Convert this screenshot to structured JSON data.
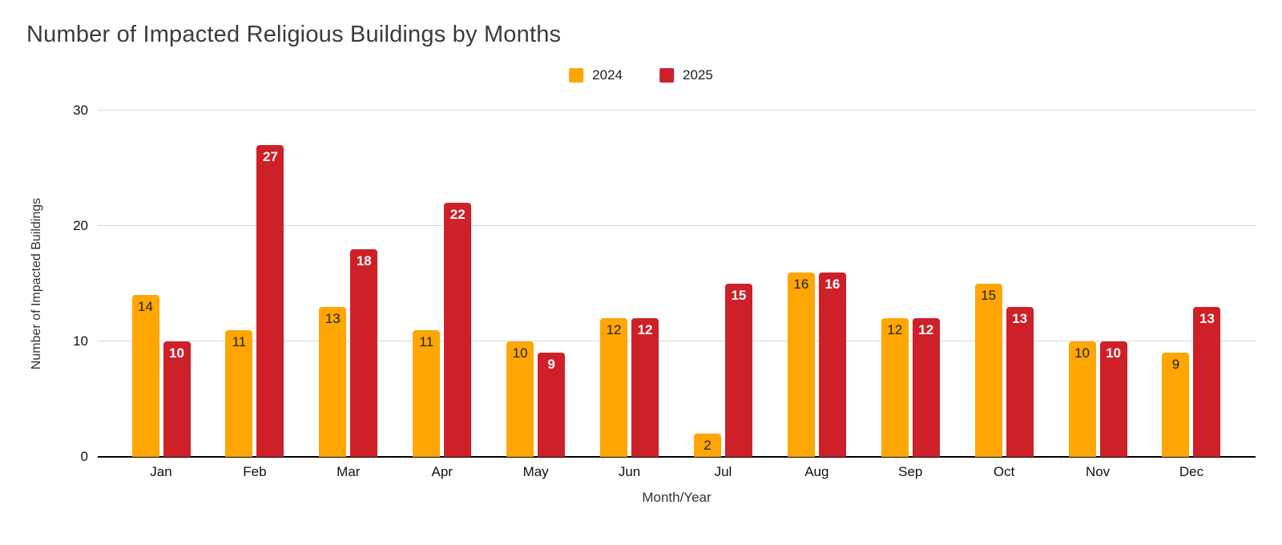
{
  "title": "Number of Impacted Religious Buildings by Months",
  "legend": {
    "items": [
      {
        "label": "2024",
        "color": "#FFA602"
      },
      {
        "label": "2025",
        "color": "#CE2029"
      }
    ]
  },
  "axes": {
    "y_ticks": [
      "0",
      "10",
      "20",
      "30"
    ],
    "x_ticks": [
      "Jan",
      "Feb",
      "Mar",
      "Apr",
      "May",
      "Jun",
      "Jul",
      "Aug",
      "Sep",
      "Oct",
      "Nov",
      "Dec"
    ]
  },
  "chart_data": {
    "type": "bar",
    "title": "Number of Impacted Religious Buildings by Months",
    "xlabel": "Month/Year",
    "ylabel": "Number of Impacted Buildings",
    "categories": [
      "Jan",
      "Feb",
      "Mar",
      "Apr",
      "May",
      "Jun",
      "Jul",
      "Aug",
      "Sep",
      "Oct",
      "Nov",
      "Dec"
    ],
    "series": [
      {
        "name": "2024",
        "color": "#FFA602",
        "label_style": "dark",
        "values": [
          14,
          11,
          13,
          11,
          10,
          12,
          2,
          16,
          12,
          15,
          10,
          9
        ]
      },
      {
        "name": "2025",
        "color": "#CE2029",
        "label_style": "light",
        "values": [
          10,
          27,
          18,
          22,
          9,
          12,
          15,
          16,
          12,
          13,
          10,
          13
        ]
      }
    ],
    "ylim": [
      0,
      30
    ],
    "yticks": [
      0,
      10,
      20,
      30
    ],
    "grid": true,
    "gridline_color": "#d9d9d9",
    "baseline_color": "#000000",
    "legend_position": "top",
    "bar_labels": "inside-top"
  }
}
